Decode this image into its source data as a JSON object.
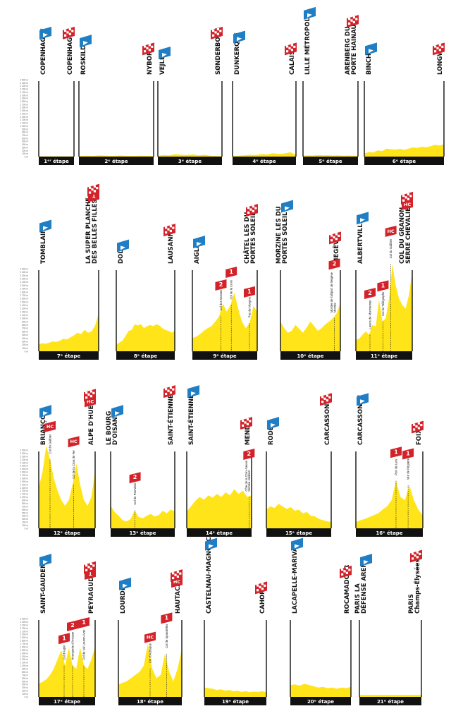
{
  "brand": {
    "yellow": "#ffe41a",
    "red": "#d2232a",
    "blue": "#1f7ec4",
    "black": "#111111"
  },
  "axis_labels": [
    "2 500 m",
    "2 400 m",
    "2 300 m",
    "2 200 m",
    "2 100 m",
    "2 000 m",
    "1 900 m",
    "1 800 m",
    "1 700 m",
    "1 600 m",
    "1 500 m",
    "1 400 m",
    "1 300 m",
    "1 200 m",
    "1 100 m",
    "1 000 m",
    "900 m",
    "800 m",
    "700 m",
    "600 m",
    "500 m",
    "400 m",
    "300 m",
    "200 m",
    "100 m",
    "0 m"
  ],
  "stages": [
    {
      "label": "1ᵉʳ étape",
      "start": "COPENHAGUE",
      "finish": "COPENHAGUE",
      "climbs": [],
      "profile": [
        10,
        10,
        10,
        10,
        10,
        10,
        10,
        10
      ]
    },
    {
      "label": "2ᵉ étape",
      "start": "ROSKILDE",
      "finish": "NYBORG",
      "climbs": [],
      "profile": [
        20,
        30,
        20,
        40,
        30,
        20,
        35,
        25,
        20,
        30,
        25,
        20
      ]
    },
    {
      "label": "3ᵉ étape",
      "start": "VEJLE",
      "finish": "SØNDERBORG",
      "climbs": [],
      "profile": [
        30,
        50,
        40,
        80,
        60,
        50,
        70,
        40,
        60,
        30,
        20,
        15
      ]
    },
    {
      "label": "4ᵉ étape",
      "start": "DUNKERQUE",
      "finish": "CALAIS",
      "climbs": [],
      "profile": [
        20,
        30,
        40,
        60,
        50,
        80,
        70,
        110,
        90,
        100,
        140,
        60
      ]
    },
    {
      "label": "5ᵉ étape",
      "start": "LILLE MÉTROPOLE",
      "finish": "ARENBERG PORTE DU HAINAUT",
      "climbs": [],
      "profile": [
        30,
        40,
        35,
        50,
        40,
        45,
        35,
        40,
        30,
        35,
        30,
        30
      ]
    },
    {
      "label": "6ᵉ étape",
      "start": "BINCHE",
      "finish": "LONGWY",
      "climbs": [],
      "profile": [
        100,
        150,
        130,
        200,
        180,
        260,
        240,
        230,
        250,
        220,
        260,
        300,
        280,
        320,
        300,
        340,
        380,
        360,
        400
      ]
    },
    {
      "label": "7ᵉ étape",
      "start": "TOMBLAINE",
      "finish": "LA SUPER PLANCHE DES BELLES FILLES",
      "climbs": [
        {
          "name": "",
          "cat": "1",
          "x": 1.0
        }
      ],
      "profile": [
        220,
        240,
        230,
        260,
        300,
        280,
        320,
        380,
        360,
        420,
        480,
        560,
        520,
        650,
        560,
        600,
        780,
        1140
      ]
    },
    {
      "label": "8ᵉ étape",
      "start": "DOLE",
      "finish": "LAUSANNE",
      "climbs": [],
      "profile": [
        200,
        260,
        320,
        460,
        620,
        640,
        820,
        780,
        820,
        700,
        760,
        800,
        760,
        820,
        780,
        700,
        640,
        620,
        560,
        620
      ]
    },
    {
      "label": "9ᵉ étape",
      "start": "AIGLE",
      "finish": "CHÂTEL LES PORTES DU SOLEIL",
      "climbs": [
        {
          "name": "Col des Mosses",
          "cat": "2",
          "x": 0.44
        },
        {
          "name": "Col de la Croix",
          "cat": "1",
          "x": 0.6
        },
        {
          "name": "Pas de Morgins",
          "cat": "1",
          "x": 0.88
        }
      ],
      "profile": [
        400,
        440,
        520,
        620,
        700,
        760,
        900,
        1060,
        1445,
        1200,
        1400,
        1778,
        1300,
        900,
        700,
        850,
        1369,
        1200
      ]
    },
    {
      "label": "10ᵉ étape",
      "start": "MORZINE LES PORTES DU SOLEIL",
      "finish": "MEGÈVE",
      "climbs": [
        {
          "name": "Montée de l'altiport de Megève",
          "cat": "2",
          "x": 0.9
        }
      ],
      "profile": [
        900,
        700,
        560,
        620,
        800,
        680,
        560,
        720,
        900,
        760,
        620,
        700,
        820,
        900,
        1000,
        1150,
        1450
      ]
    },
    {
      "label": "11ᵉ étape",
      "start": "ALBERTVILLE",
      "finish": "COL DU GRANON SERRE CHEVALIER",
      "climbs": [
        {
          "name": "Lacets de Montvernier",
          "cat": "2",
          "x": 0.25
        },
        {
          "name": "Col du Télégraphe",
          "cat": "1",
          "x": 0.48
        },
        {
          "name": "Col du Galibier",
          "cat": "HC",
          "x": 0.62
        },
        {
          "name": "",
          "cat": "HC",
          "x": 1.0
        }
      ],
      "profile": [
        350,
        380,
        500,
        600,
        500,
        800,
        750,
        1566,
        900,
        1000,
        1600,
        2642,
        2000,
        1600,
        1400,
        1300,
        1700,
        2413
      ]
    },
    {
      "label": "12ᵉ étape",
      "start": "BRIANÇON",
      "finish": "ALPE D'HUEZ",
      "climbs": [
        {
          "name": "Col du Galibier",
          "cat": "HC",
          "x": 0.2
        },
        {
          "name": "Col de la Croix de Fer",
          "cat": "HC",
          "x": 0.62
        },
        {
          "name": "",
          "cat": "HC",
          "x": 1.0
        }
      ],
      "profile": [
        1300,
        1800,
        2642,
        2200,
        1600,
        1200,
        900,
        720,
        900,
        1400,
        2067,
        1400,
        900,
        720,
        1000,
        1850
      ]
    },
    {
      "label": "13ᵉ étape",
      "start": "LE BOURG D'OISANS",
      "finish": "SAINT-ÉTIENNE",
      "climbs": [
        {
          "name": "Col de Parménie",
          "cat": "2",
          "x": 0.38
        }
      ],
      "profile": [
        720,
        520,
        400,
        260,
        220,
        300,
        571,
        360,
        320,
        400,
        460,
        380,
        420,
        560,
        480,
        600,
        540
      ]
    },
    {
      "label": "14ᵉ étape",
      "start": "SAINT-ÉTIENNE",
      "finish": "MENDE",
      "climbs": [
        {
          "name": "Côte de la Croix-Neuve Montée Jalabert",
          "cat": "2",
          "x": 0.96
        }
      ],
      "profile": [
        540,
        700,
        880,
        1000,
        920,
        1050,
        980,
        1100,
        1000,
        1150,
        1050,
        1250,
        1100,
        1200,
        1000,
        1050
      ]
    },
    {
      "label": "15ᵉ étape",
      "start": "RODEZ",
      "finish": "CARCASSONNE",
      "climbs": [],
      "profile": [
        600,
        700,
        650,
        780,
        700,
        620,
        680,
        560,
        600,
        480,
        520,
        400,
        380,
        300,
        260,
        220,
        200
      ]
    },
    {
      "label": "16ᵉ étape",
      "start": "CARCASSONNE",
      "finish": "FOIX",
      "climbs": [
        {
          "name": "Port de Lers",
          "cat": "1",
          "x": 0.6
        },
        {
          "name": "Mur de Péguère",
          "cat": "1",
          "x": 0.78
        }
      ],
      "profile": [
        200,
        260,
        300,
        360,
        420,
        480,
        600,
        700,
        900,
        1517,
        1000,
        900,
        1375,
        900,
        600,
        400
      ]
    },
    {
      "label": "17ᵉ étape",
      "start": "SAINT-GAUDENS",
      "finish": "PEYRAGUDES",
      "climbs": [
        {
          "name": "Col d'Aspin",
          "cat": "1",
          "x": 0.45
        },
        {
          "name": "Hourquette d'Ancizan",
          "cat": "2",
          "x": 0.6
        },
        {
          "name": "Col de Val Louron-Azet",
          "cat": "1",
          "x": 0.8
        },
        {
          "name": "",
          "cat": "1",
          "x": 1.0
        }
      ],
      "profile": [
        420,
        480,
        560,
        700,
        900,
        1200,
        1489,
        1000,
        1564,
        1000,
        900,
        1580,
        1000,
        900,
        1200,
        1600
      ]
    },
    {
      "label": "18ᵉ étape",
      "start": "LOURDES",
      "finish": "HAUTACAM",
      "climbs": [
        {
          "name": "Col d'Aubisque",
          "cat": "HC",
          "x": 0.5
        },
        {
          "name": "Col de Spandelles",
          "cat": "1",
          "x": 0.76
        },
        {
          "name": "",
          "cat": "HC",
          "x": 1.0
        }
      ],
      "profile": [
        400,
        450,
        500,
        600,
        700,
        800,
        1000,
        1709,
        900,
        600,
        700,
        1378,
        800,
        500,
        900,
        1520
      ]
    },
    {
      "label": "19ᵉ étape",
      "start": "CASTELNAU-MAGNOAC",
      "finish": "CAHORS",
      "climbs": [],
      "profile": [
        300,
        280,
        260,
        220,
        240,
        200,
        220,
        180,
        200,
        160,
        180,
        150,
        170,
        160,
        180,
        150
      ]
    },
    {
      "label": "20ᵉ étape",
      "start": "LACAPELLE-MARIVAL",
      "finish": "ROCAMADOUR",
      "climbs": [],
      "profile": [
        380,
        400,
        360,
        420,
        380,
        340,
        300,
        320,
        280,
        300,
        260,
        300,
        280,
        320
      ]
    },
    {
      "label": "21ᵉ étape",
      "start": "PARIS LA DÉFENSE ARENA",
      "finish": "PARIS Champs-Élysées",
      "climbs": [],
      "profile": [
        60,
        60,
        60,
        60,
        60,
        60,
        60,
        60
      ]
    }
  ]
}
